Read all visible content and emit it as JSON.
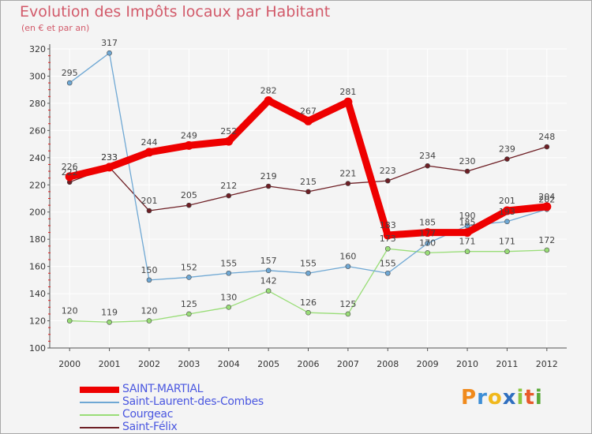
{
  "title": "Evolution des Impôts locaux par Habitant",
  "subtitle": "(en € et par an)",
  "logo": "Proxiti",
  "colors": {
    "title": "#d25a6a",
    "legend_text": "#4a57e0",
    "grid": "#ffffff",
    "plot_bg": "#f4f4f4",
    "axis_text": "#333333"
  },
  "chart_data": {
    "type": "line",
    "title": "Evolution des Impôts locaux par Habitant",
    "subtitle": "(en € et par an)",
    "x": [
      "2000",
      "2001",
      "2002",
      "2003",
      "2004",
      "2005",
      "2006",
      "2007",
      "2008",
      "2009",
      "2010",
      "2011",
      "2012"
    ],
    "ylim": [
      100,
      320
    ],
    "yticks": [
      100,
      120,
      140,
      160,
      180,
      200,
      220,
      240,
      260,
      280,
      300,
      320
    ],
    "grid": true,
    "legend_position": "bottom-left",
    "series": [
      {
        "name": "Saint-Félix",
        "color": "#6e1f25",
        "values": [
          222,
          233,
          201,
          205,
          212,
          219,
          215,
          221,
          223,
          234,
          230,
          239,
          248
        ]
      },
      {
        "name": "Courgeac",
        "color": "#99dd77",
        "values": [
          120,
          119,
          120,
          125,
          130,
          142,
          126,
          125,
          173,
          170,
          171,
          171,
          172
        ]
      },
      {
        "name": "Saint-Laurent-des-Combes",
        "color": "#6fa8d4",
        "values": [
          295,
          317,
          150,
          152,
          155,
          157,
          155,
          160,
          155,
          177,
          190,
          193,
          202
        ]
      },
      {
        "name": "SAINT-MARTIAL",
        "color": "#ee0000",
        "values": [
          226,
          233,
          244,
          249,
          252,
          282,
          267,
          281,
          183,
          185,
          185,
          201,
          204
        ]
      }
    ],
    "data_labels": [
      [
        "222",
        "233",
        "201",
        "205",
        "212",
        "219",
        "215",
        "221",
        "223",
        "234",
        "230",
        "239",
        "248"
      ],
      [
        "120",
        "119",
        "120",
        "125",
        "130",
        "142",
        "126",
        "125",
        "173",
        "170",
        "171",
        "171",
        "172"
      ],
      [
        "295",
        "317",
        "150",
        "152",
        "155",
        "157",
        "155",
        "160",
        "155",
        "177",
        "190",
        "193",
        "202"
      ],
      [
        "226",
        "233",
        "244",
        "249",
        "252",
        "282",
        "267",
        "281",
        "183",
        "185",
        "185",
        "201",
        "204"
      ]
    ],
    "legend_order": [
      "SAINT-MARTIAL",
      "Saint-Laurent-des-Combes",
      "Courgeac",
      "Saint-Félix"
    ]
  }
}
